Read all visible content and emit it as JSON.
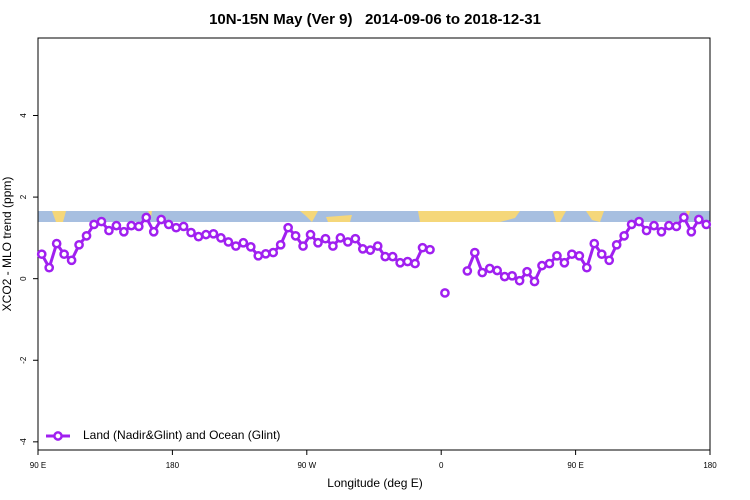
{
  "chart_data": {
    "type": "line",
    "title": "10N-15N May (Ver 9)   2014-09-06 to 2018-12-31",
    "xlabel": "Longitude (deg E)",
    "ylabel": "XCO2 - MLO trend (ppm)",
    "xlim": [
      90,
      540
    ],
    "ylim": [
      -4.2,
      5.9
    ],
    "xticks": [
      {
        "value": 90,
        "label": "90 E"
      },
      180,
      {
        "value": 270,
        "label": "90 W"
      },
      {
        "value": 360,
        "label": "0"
      },
      {
        "value": 450,
        "label": "90 E"
      },
      {
        "value": 540,
        "label": "180"
      }
    ],
    "yticks": [
      -4,
      -2,
      0,
      2,
      4
    ],
    "legend": "bottom-left",
    "x": [
      92.5,
      97.5,
      102.5,
      107.5,
      112.5,
      117.5,
      122.5,
      127.5,
      132.5,
      137.5,
      142.5,
      147.5,
      152.5,
      157.5,
      162.5,
      167.5,
      172.5,
      177.5,
      182.5,
      187.5,
      192.5,
      197.5,
      202.5,
      207.5,
      212.5,
      217.5,
      222.5,
      227.5,
      232.5,
      237.5,
      242.5,
      247.5,
      252.5,
      257.5,
      262.5,
      267.5,
      272.5,
      277.5,
      282.5,
      287.5,
      292.5,
      297.5,
      302.5,
      307.5,
      312.5,
      317.5,
      322.5,
      327.5,
      332.5,
      337.5,
      342.5,
      347.5,
      352.5,
      357.5,
      362.5,
      367.5,
      372.5,
      377.5,
      382.5,
      387.5,
      392.5,
      397.5,
      402.5,
      407.5,
      412.5,
      417.5,
      422.5,
      427.5,
      432.5,
      437.5,
      442.5,
      447.5,
      452.5,
      457.5,
      462.5,
      467.5,
      472.5,
      477.5,
      482.5,
      487.5,
      492.5,
      497.5,
      502.5,
      507.5,
      512.5,
      517.5,
      522.5,
      527.5,
      532.5,
      537.5
    ],
    "series": [
      {
        "name": "Land (Nadir&Glint) and Ocean (Glint)",
        "color": "#a020f0",
        "values": [
          0.6,
          0.27,
          0.86,
          0.6,
          0.45,
          0.83,
          1.05,
          1.33,
          1.4,
          1.18,
          1.3,
          1.15,
          1.3,
          1.28,
          1.5,
          1.15,
          1.45,
          1.33,
          1.25,
          1.28,
          1.13,
          1.03,
          1.08,
          1.1,
          1.0,
          0.9,
          0.8,
          0.88,
          0.78,
          0.56,
          0.61,
          0.64,
          0.83,
          1.25,
          1.05,
          0.8,
          1.08,
          0.88,
          0.98,
          0.8,
          1.0,
          0.9,
          0.98,
          0.73,
          0.7,
          0.8,
          0.54,
          0.54,
          0.39,
          0.42,
          0.37,
          0.76,
          0.71,
          null,
          -0.35,
          null,
          null,
          0.19,
          0.64,
          0.15,
          0.25,
          0.2,
          0.05,
          0.07,
          -0.05,
          0.17,
          -0.07,
          0.32,
          0.37,
          0.56,
          0.39,
          0.6,
          0.56,
          0.27,
          0.86,
          0.6,
          0.45,
          0.83,
          1.05,
          1.33,
          1.4,
          1.18,
          1.3,
          1.15,
          1.3,
          1.28,
          1.5,
          1.15,
          1.45,
          1.33
        ]
      }
    ]
  }
}
